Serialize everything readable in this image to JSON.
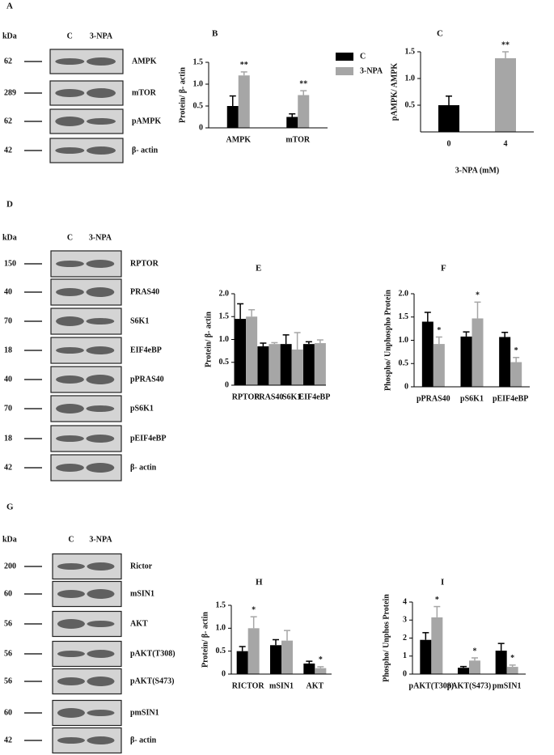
{
  "blots": [
    {
      "panel": "A",
      "unit": "kDa",
      "columns": [
        "C",
        "3-NPA"
      ],
      "rows": [
        {
          "mw": "62",
          "protein": "AMPK"
        },
        {
          "mw": "289",
          "protein": "mTOR"
        },
        {
          "mw": "62",
          "protein": "pAMPK"
        },
        {
          "mw": "42",
          "protein": "β- actin"
        }
      ]
    },
    {
      "panel": "D",
      "unit": "kDa",
      "columns": [
        "C",
        "3-NPA"
      ],
      "rows": [
        {
          "mw": "150",
          "protein": "RPTOR"
        },
        {
          "mw": "40",
          "protein": "PRAS40"
        },
        {
          "mw": "70",
          "protein": "S6K1"
        },
        {
          "mw": "18",
          "protein": "EIF4eBP"
        },
        {
          "mw": "40",
          "protein": "pPRAS40"
        },
        {
          "mw": "70",
          "protein": "pS6K1"
        },
        {
          "mw": "18",
          "protein": "pEIF4eBP"
        },
        {
          "mw": "42",
          "protein": "β- actin"
        }
      ]
    },
    {
      "panel": "G",
      "unit": "kDa",
      "columns": [
        "C",
        "3-NPA"
      ],
      "rows": [
        {
          "mw": "200",
          "protein": "Rictor"
        },
        {
          "mw": "60",
          "protein": "mSIN1"
        },
        {
          "mw": "56",
          "protein": "AKT"
        },
        {
          "mw": "56",
          "protein": "pAKT(T308)"
        },
        {
          "mw": "56",
          "protein": "pAKT(S473)"
        },
        {
          "mw": "60",
          "protein": "pmSIN1"
        },
        {
          "mw": "42",
          "protein": "β- actin"
        }
      ]
    }
  ],
  "chart_data": [
    {
      "type": "bar",
      "panel": "B",
      "y_label": "Protein/ β- actin",
      "categories": [
        "AMPK",
        "mTOR"
      ],
      "series": [
        {
          "name": "C",
          "color": "#000000",
          "values": [
            0.5,
            0.25
          ],
          "errors": [
            0.23,
            0.07
          ]
        },
        {
          "name": "3-NPA",
          "color": "#a6a6a6",
          "values": [
            1.2,
            0.75
          ],
          "errors": [
            0.08,
            0.1
          ],
          "significance": [
            "**",
            "**"
          ]
        }
      ],
      "ylim": [
        0,
        1.5
      ],
      "yticks": [
        0,
        0.5,
        {
          "value": 1,
          "label": "1.0"
        },
        1.5
      ]
    },
    {
      "type": "bar",
      "panel": "C",
      "y_label": "pAMPK/ AMPK",
      "x_label": "3-NPA (mM)",
      "categories": [
        "0",
        "4"
      ],
      "series": [
        {
          "colors": [
            "#000000",
            "#a6a6a6"
          ],
          "values": [
            0.5,
            1.38
          ],
          "errors": [
            0.17,
            0.12
          ],
          "significance": [
            null,
            "**"
          ]
        }
      ],
      "ylim": [
        0,
        1.5
      ],
      "yticks": [
        0.5,
        {
          "value": 1,
          "label": "1.0"
        },
        1.5
      ]
    },
    {
      "type": "bar",
      "panel": "E",
      "y_label": "Protein/ β- actin",
      "categories": [
        "RPTOR",
        "PRAS40",
        "S6K1",
        "EIF4eBP"
      ],
      "series": [
        {
          "color": "#000000",
          "values": [
            1.45,
            0.85,
            0.9,
            0.9
          ],
          "errors": [
            0.33,
            0.07,
            0.2,
            0.05
          ]
        },
        {
          "color": "#a6a6a6",
          "values": [
            1.5,
            0.9,
            0.78,
            0.92
          ],
          "errors": [
            0.15,
            0.03,
            0.37,
            0.07
          ]
        }
      ],
      "ylim": [
        0,
        2
      ],
      "yticks": [
        0,
        0.5,
        {
          "value": 1,
          "label": "1.0"
        },
        1.5,
        {
          "value": 2,
          "label": "2.0"
        }
      ]
    },
    {
      "type": "bar",
      "panel": "F",
      "y_label": "Phospho/ Unphospho Protein",
      "categories": [
        "pPRAS40",
        "pS6K1",
        "pEIF4eBP"
      ],
      "series": [
        {
          "color": "#000000",
          "values": [
            1.4,
            1.08,
            1.07
          ],
          "errors": [
            0.2,
            0.1,
            0.1
          ]
        },
        {
          "color": "#a6a6a6",
          "values": [
            0.92,
            1.47,
            0.53
          ],
          "errors": [
            0.15,
            0.35,
            0.1
          ],
          "significance": [
            "*",
            "*",
            "*"
          ]
        }
      ],
      "ylim": [
        0,
        2
      ],
      "yticks": [
        0,
        0.5,
        {
          "value": 1,
          "label": "1.0"
        },
        1.5,
        {
          "value": 2,
          "label": "2.0"
        }
      ]
    },
    {
      "type": "bar",
      "panel": "H",
      "y_label": "Protein/ β- actin",
      "categories": [
        "RICTOR",
        "mSIN1",
        "AKT"
      ],
      "series": [
        {
          "color": "#000000",
          "values": [
            0.5,
            0.63,
            0.23
          ],
          "errors": [
            0.1,
            0.12,
            0.05
          ]
        },
        {
          "color": "#a6a6a6",
          "values": [
            1.0,
            0.73,
            0.13
          ],
          "errors": [
            0.25,
            0.22,
            0.03
          ],
          "significance": [
            "*",
            null,
            "*"
          ]
        }
      ],
      "ylim": [
        0,
        1.5
      ],
      "yticks": [
        0,
        0.5,
        {
          "value": 1,
          "label": "1.0"
        },
        1.5
      ]
    },
    {
      "type": "bar",
      "panel": "I",
      "y_label": "Phospho/ Unphos Protein",
      "categories": [
        "pAKT(T308)",
        "pAKT(S473)",
        "pmSIN1"
      ],
      "series": [
        {
          "color": "#000000",
          "values": [
            1.9,
            0.35,
            1.3
          ],
          "errors": [
            0.4,
            0.07,
            0.4
          ]
        },
        {
          "color": "#a6a6a6",
          "values": [
            3.15,
            0.75,
            0.4
          ],
          "errors": [
            0.6,
            0.15,
            0.1
          ],
          "significance": [
            "*",
            "*",
            "*"
          ]
        }
      ],
      "ylim": [
        0,
        4
      ],
      "yticks": [
        0,
        1,
        2,
        3,
        4
      ]
    }
  ]
}
